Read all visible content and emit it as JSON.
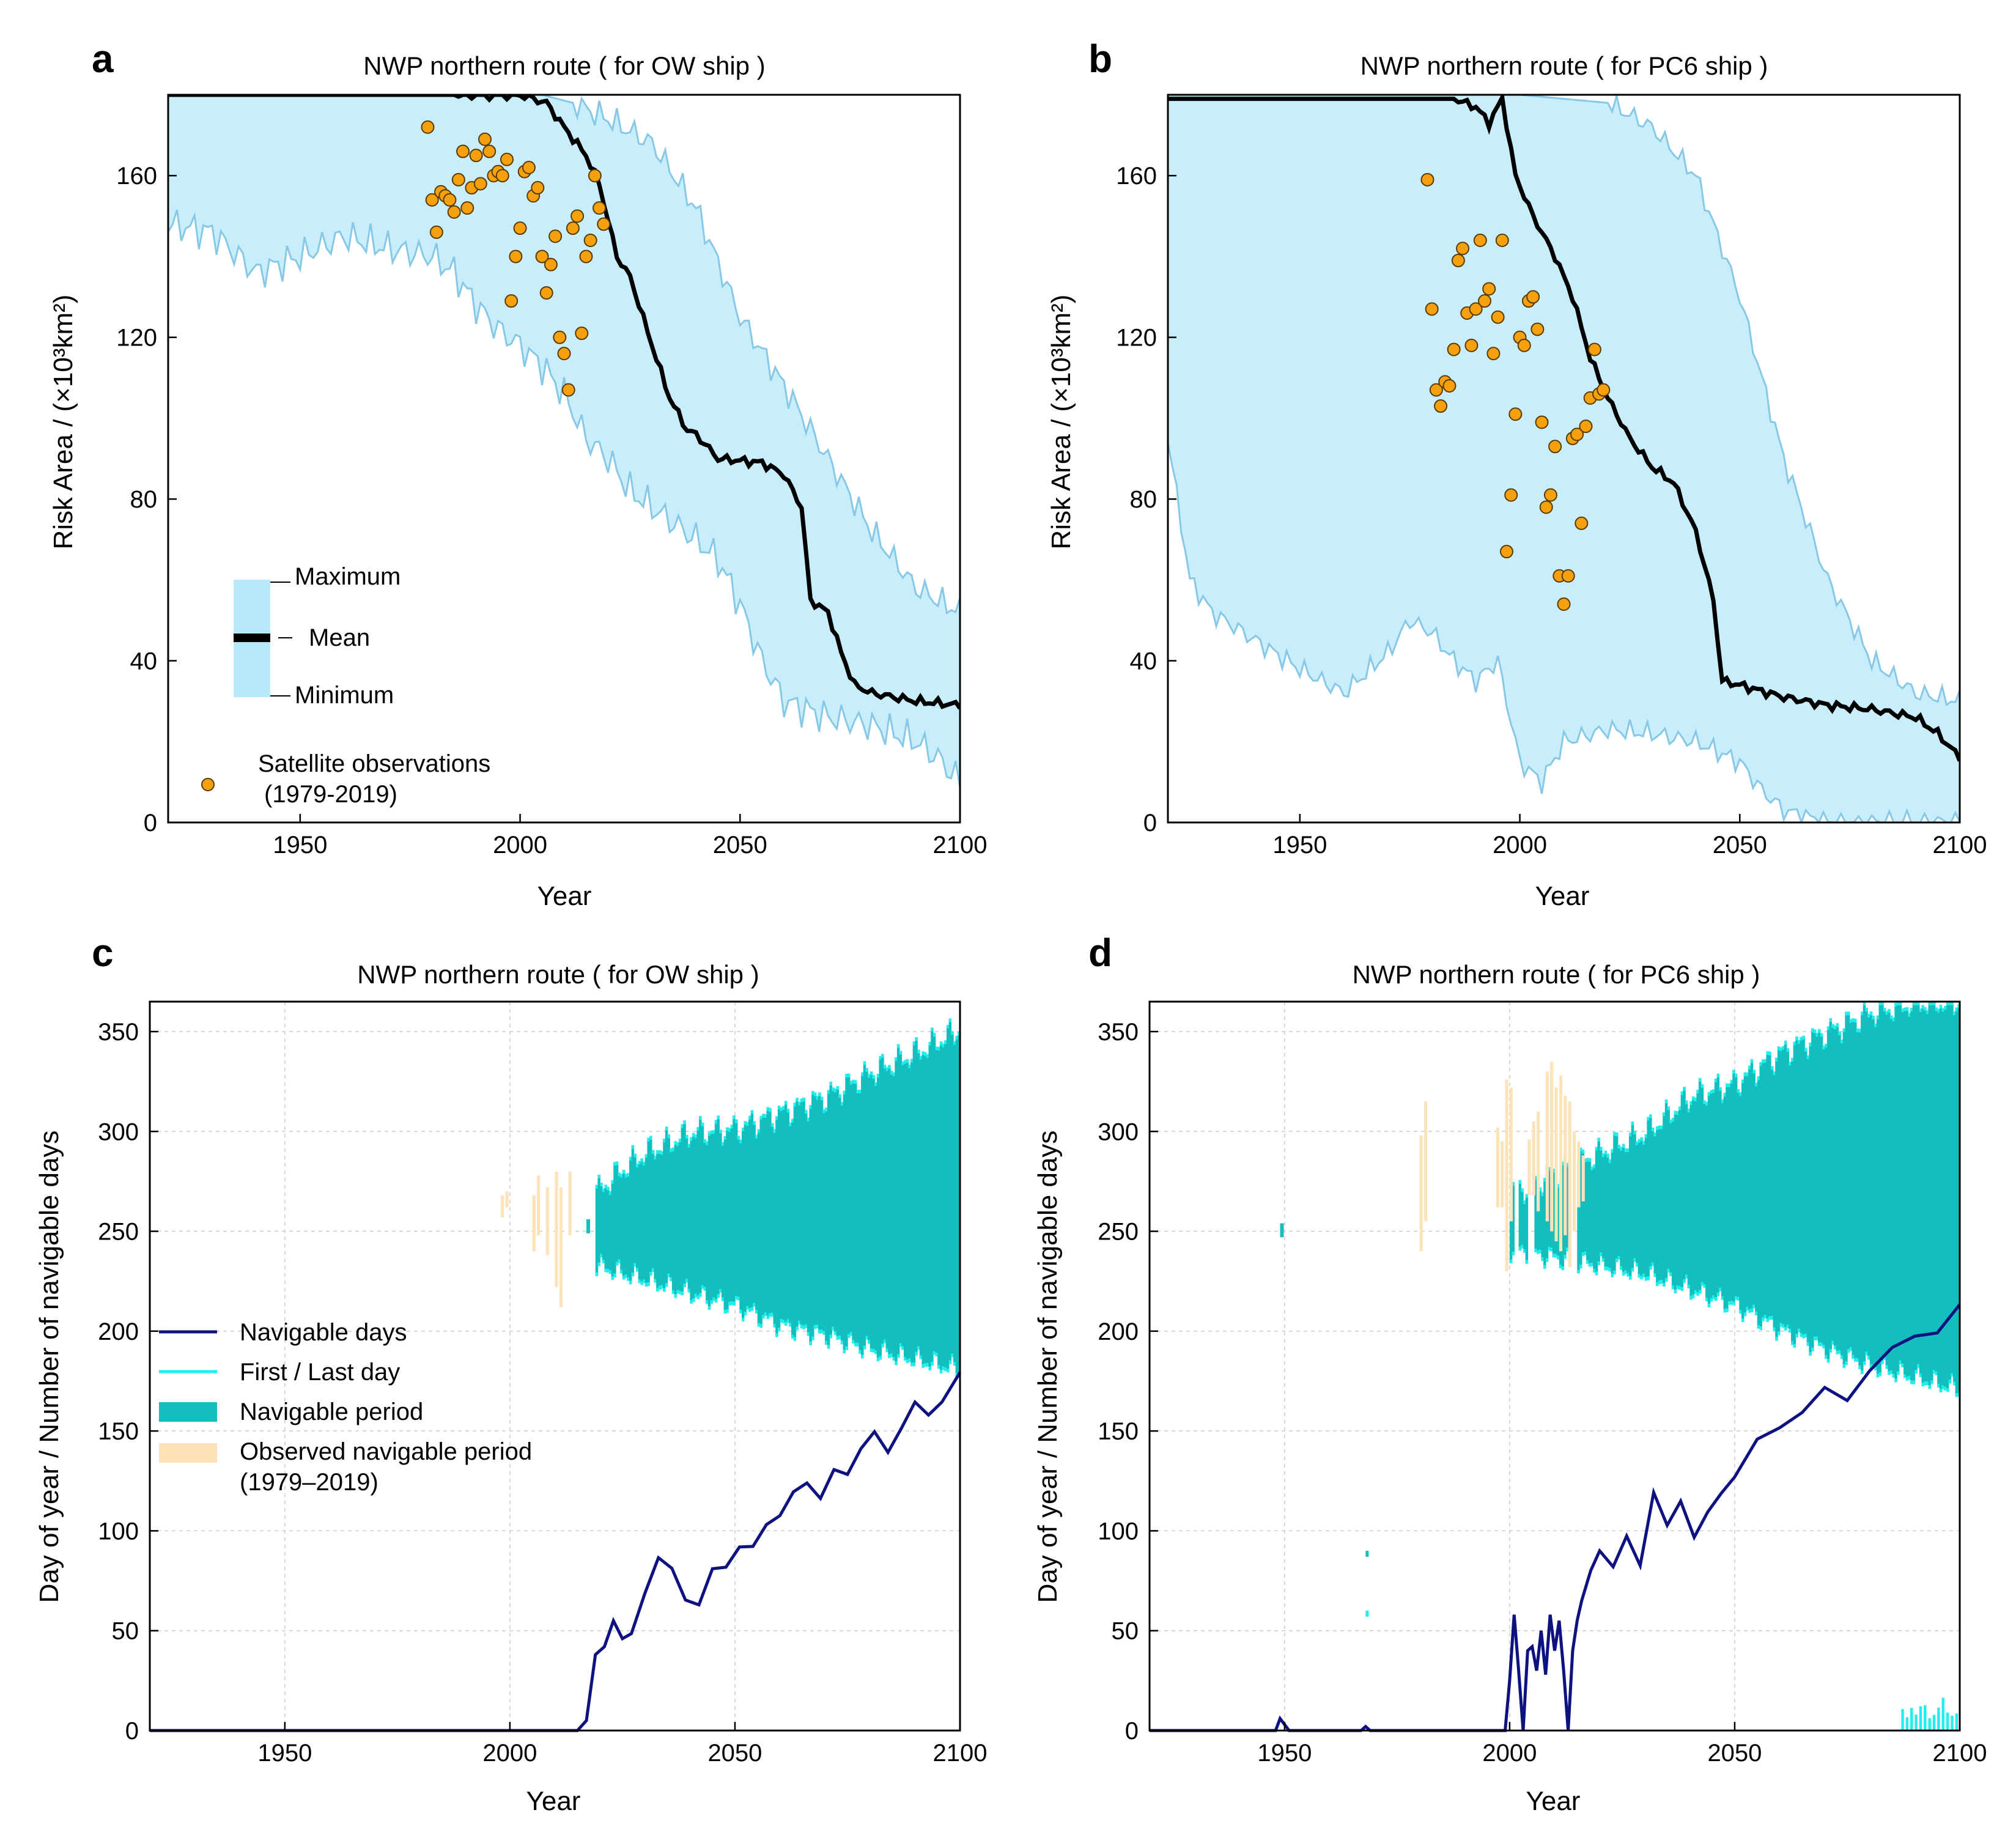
{
  "figure": {
    "x_label": "Year",
    "x_ticks": [
      "1950",
      "2000",
      "2050",
      "2100"
    ]
  },
  "panels": {
    "a": {
      "letter": "a",
      "title": "NWP northern route ( for OW ship )",
      "ylabel": "Risk Area / (×10³km²)",
      "y_ticks": [
        "0",
        "40",
        "80",
        "120",
        "160"
      ]
    },
    "b": {
      "letter": "b",
      "title": "NWP northern route ( for PC6 ship )",
      "ylabel": "Risk Area / (×10³km²)",
      "y_ticks": [
        "0",
        "40",
        "80",
        "120",
        "160"
      ]
    },
    "c": {
      "letter": "c",
      "title": "NWP northern route ( for OW ship )",
      "ylabel": "Day of year / Number of navigable days",
      "y_ticks": [
        "0",
        "50",
        "100",
        "150",
        "200",
        "250",
        "300",
        "350"
      ]
    },
    "d": {
      "letter": "d",
      "title": "NWP northern route ( for PC6 ship )",
      "ylabel": "Day of year / Number of navigable days",
      "y_ticks": [
        "0",
        "50",
        "100",
        "150",
        "200",
        "250",
        "300",
        "350"
      ]
    }
  },
  "legend_a": {
    "maximum": "Maximum",
    "mean": "Mean",
    "minimum": "Minimum",
    "sat_line1": "Satellite observations",
    "sat_line2": "(1979-2019)"
  },
  "legend_c": {
    "navigable_days": "Navigable days",
    "first_last": "First / Last day",
    "nav_period": "Navigable period",
    "obs_line1": "Observed navigable period",
    "obs_line2": "(1979–2019)"
  },
  "colors": {
    "band_fill": "#c9eefb",
    "band_edge": "#86c8e6",
    "mean_line": "#000000",
    "obs_dot": "#f5a10f",
    "nav_days": "#0d1280",
    "first_last": "#22eeee",
    "nav_period": "#13bfbc",
    "obs_period": "#fde3b8"
  },
  "chart_data": [
    {
      "id": "a",
      "type": "area",
      "title": "NWP northern route ( for OW ship )",
      "xlabel": "Year",
      "ylabel": "Risk Area / (×10³km²)",
      "xlim": [
        1920,
        2100
      ],
      "ylim": [
        0,
        180
      ],
      "series": [
        {
          "name": "Maximum",
          "x": [
            1920,
            1990,
            2005,
            2012,
            2020,
            2030,
            2040,
            2050,
            2060,
            2070,
            2080,
            2090,
            2100
          ],
          "y": [
            180,
            180,
            180,
            178,
            174,
            168,
            152,
            125,
            108,
            90,
            72,
            58,
            52
          ]
        },
        {
          "name": "Mean",
          "x": [
            1920,
            2000,
            2006,
            2010,
            2015,
            2018,
            2022,
            2025,
            2030,
            2034,
            2038,
            2040,
            2045,
            2055,
            2060,
            2064,
            2066,
            2070,
            2073,
            2076,
            2080,
            2090,
            2100
          ],
          "y": [
            180,
            180,
            178,
            172,
            165,
            158,
            140,
            135,
            118,
            105,
            97,
            96,
            90,
            89,
            86,
            78,
            55,
            52,
            42,
            34,
            32,
            30,
            29
          ]
        },
        {
          "name": "Minimum",
          "x": [
            1920,
            1930,
            1940,
            1950,
            1960,
            1970,
            1980,
            1985,
            1990,
            1995,
            2000,
            2005,
            2010,
            2015,
            2020,
            2025,
            2030,
            2040,
            2045,
            2050,
            2055,
            2060,
            2070,
            2080,
            2090,
            2095,
            2100
          ],
          "y": [
            148,
            146,
            136,
            140,
            145,
            142,
            140,
            136,
            128,
            122,
            118,
            113,
            106,
            95,
            90,
            82,
            78,
            70,
            65,
            54,
            40,
            30,
            26,
            24,
            20,
            16,
            10
          ]
        },
        {
          "name": "Satellite observations (1979-2019)",
          "type": "scatter",
          "x": [
            1979,
            1980,
            1981,
            1982,
            1983,
            1984,
            1985,
            1986,
            1987,
            1988,
            1989,
            1990,
            1991,
            1992,
            1993,
            1994,
            1995,
            1996,
            1997,
            1998,
            1999,
            2000,
            2001,
            2002,
            2003,
            2004,
            2005,
            2006,
            2007,
            2008,
            2009,
            2010,
            2011,
            2012,
            2013,
            2014,
            2015,
            2016,
            2017,
            2018,
            2019
          ],
          "y": [
            172,
            154,
            146,
            156,
            155,
            154,
            151,
            159,
            166,
            152,
            157,
            165,
            158,
            169,
            166,
            160,
            161,
            160,
            164,
            129,
            140,
            147,
            161,
            162,
            155,
            157,
            140,
            131,
            138,
            145,
            120,
            116,
            107,
            147,
            150,
            121,
            140,
            144,
            160,
            152,
            148
          ]
        }
      ]
    },
    {
      "id": "b",
      "type": "area",
      "title": "NWP northern route ( for PC6 ship )",
      "xlabel": "Year",
      "ylabel": "Risk Area / (×10³km²)",
      "xlim": [
        1920,
        2100
      ],
      "ylim": [
        0,
        180
      ],
      "series": [
        {
          "name": "Maximum",
          "x": [
            1920,
            2000,
            2020,
            2030,
            2040,
            2050,
            2060,
            2070,
            2080,
            2090,
            2100
          ],
          "y": [
            180,
            180,
            178,
            172,
            160,
            130,
            90,
            60,
            40,
            32,
            30
          ]
        },
        {
          "name": "Mean",
          "x": [
            1920,
            1985,
            1990,
            1993,
            1996,
            1999,
            2003,
            2008,
            2012,
            2016,
            2020,
            2025,
            2030,
            2035,
            2040,
            2044,
            2046,
            2050,
            2060,
            2070,
            2080,
            2090,
            2095,
            2100
          ],
          "y": [
            179,
            179,
            177,
            173,
            179,
            160,
            150,
            140,
            130,
            115,
            105,
            95,
            88,
            84,
            72,
            55,
            35,
            34,
            31,
            29,
            28,
            26,
            22,
            16
          ]
        },
        {
          "name": "Minimum",
          "x": [
            1920,
            1925,
            1930,
            1940,
            1950,
            1960,
            1970,
            1975,
            1980,
            1985,
            1990,
            1995,
            2000,
            2005,
            2010,
            2020,
            2030,
            2040,
            2050,
            2055,
            2060,
            2070,
            2080,
            2090,
            2100
          ],
          "y": [
            95,
            60,
            52,
            45,
            38,
            32,
            42,
            50,
            47,
            40,
            35,
            40,
            15,
            10,
            20,
            23,
            22,
            20,
            15,
            8,
            3,
            0,
            0,
            0,
            0
          ]
        },
        {
          "name": "Satellite observations (1979-2019)",
          "type": "scatter",
          "x": [
            1979,
            1980,
            1981,
            1982,
            1983,
            1984,
            1985,
            1986,
            1987,
            1988,
            1989,
            1990,
            1991,
            1992,
            1993,
            1994,
            1995,
            1996,
            1997,
            1998,
            1999,
            2000,
            2001,
            2002,
            2003,
            2004,
            2005,
            2006,
            2007,
            2008,
            2009,
            2010,
            2011,
            2012,
            2013,
            2014,
            2015,
            2016,
            2017,
            2018,
            2019
          ],
          "y": [
            159,
            127,
            107,
            103,
            109,
            108,
            117,
            139,
            142,
            126,
            118,
            127,
            144,
            129,
            132,
            116,
            125,
            144,
            67,
            81,
            101,
            120,
            118,
            129,
            130,
            122,
            99,
            78,
            81,
            93,
            61,
            54,
            61,
            95,
            96,
            74,
            98,
            105,
            117,
            106,
            107
          ]
        }
      ]
    },
    {
      "id": "c",
      "type": "line",
      "title": "NWP northern route ( for OW ship )",
      "xlabel": "Year",
      "ylabel": "Day of year / Number of navigable days",
      "xlim": [
        1920,
        2100
      ],
      "ylim": [
        0,
        365
      ],
      "series": [
        {
          "name": "Navigable days",
          "x": [
            1920,
            2015,
            2017,
            2019,
            2021,
            2023,
            2025,
            2027,
            2030,
            2033,
            2036,
            2039,
            2042,
            2045,
            2048,
            2051,
            2054,
            2057,
            2060,
            2063,
            2066,
            2069,
            2072,
            2075,
            2078,
            2081,
            2084,
            2087,
            2090,
            2093,
            2096,
            2100
          ],
          "y": [
            0,
            0,
            5,
            38,
            42,
            55,
            46,
            48,
            65,
            88,
            82,
            68,
            62,
            78,
            82,
            92,
            96,
            102,
            106,
            118,
            124,
            120,
            130,
            128,
            138,
            150,
            142,
            152,
            165,
            154,
            165,
            178
          ]
        },
        {
          "name": "First day",
          "x": [
            2019,
            2025,
            2030,
            2040,
            2050,
            2060,
            2070,
            2080,
            2090,
            2100
          ],
          "y": [
            232,
            228,
            225,
            218,
            212,
            202,
            197,
            190,
            185,
            180
          ]
        },
        {
          "name": "Last day",
          "x": [
            2019,
            2025,
            2030,
            2040,
            2050,
            2060,
            2070,
            2080,
            2090,
            2100
          ],
          "y": [
            270,
            282,
            290,
            300,
            302,
            310,
            318,
            330,
            340,
            352
          ]
        },
        {
          "name": "Observed navigable period (1979–2019)",
          "periods": [
            [
              1998,
              257,
              268
            ],
            [
              1999,
              262,
              270
            ],
            [
              2005,
              240,
              268
            ],
            [
              2006,
              248,
              278
            ],
            [
              2008,
              238,
              272
            ],
            [
              2010,
              222,
              280
            ],
            [
              2011,
              212,
              272
            ],
            [
              2013,
              248,
              280
            ],
            [
              2017,
              250,
              256
            ]
          ]
        }
      ]
    },
    {
      "id": "d",
      "type": "line",
      "title": "NWP northern route ( for PC6 ship )",
      "xlabel": "Year",
      "ylabel": "Day of year / Number of navigable days",
      "xlim": [
        1920,
        2100
      ],
      "ylim": [
        0,
        365
      ],
      "series": [
        {
          "name": "Navigable days",
          "x": [
            1920,
            1948,
            1949,
            1950,
            1951,
            1967,
            1968,
            1969,
            1999,
            2000,
            2001,
            2002,
            2003,
            2004,
            2005,
            2006,
            2007,
            2008,
            2009,
            2010,
            2011,
            2012,
            2013,
            2014,
            2015,
            2016,
            2018,
            2020,
            2023,
            2026,
            2029,
            2032,
            2035,
            2038,
            2041,
            2044,
            2047,
            2050,
            2055,
            2060,
            2065,
            2070,
            2075,
            2080,
            2085,
            2090,
            2095,
            2100
          ],
          "y": [
            0,
            0,
            6,
            3,
            0,
            0,
            2,
            0,
            0,
            25,
            58,
            30,
            0,
            40,
            42,
            30,
            50,
            28,
            58,
            40,
            55,
            30,
            0,
            40,
            55,
            65,
            80,
            90,
            82,
            95,
            85,
            120,
            105,
            112,
            95,
            110,
            120,
            130,
            145,
            150,
            162,
            170,
            165,
            182,
            190,
            198,
            200,
            212
          ]
        },
        {
          "name": "First day",
          "x": [
            2000,
            2020,
            2030,
            2040,
            2050,
            2060,
            2070,
            2080,
            2090,
            2100
          ],
          "y": [
            240,
            232,
            228,
            220,
            212,
            200,
            190,
            182,
            176,
            170
          ]
        },
        {
          "name": "Last day",
          "x": [
            2000,
            2020,
            2030,
            2040,
            2050,
            2060,
            2070,
            2080,
            2090,
            2100
          ],
          "y": [
            270,
            290,
            300,
            318,
            325,
            340,
            350,
            360,
            365,
            365
          ]
        },
        {
          "name": "Observed navigable period (1979–2019)",
          "periods": [
            [
              1980,
              240,
              298
            ],
            [
              1981,
              255,
              315
            ],
            [
              1997,
              262,
              302
            ],
            [
              1998,
              262,
              295
            ],
            [
              1999,
              230,
              326
            ],
            [
              2000,
              255,
              322
            ],
            [
              2004,
              268,
              296
            ],
            [
              2005,
              268,
              305
            ],
            [
              2006,
              260,
              310
            ],
            [
              2008,
              255,
              330
            ],
            [
              2009,
              250,
              335
            ],
            [
              2010,
              245,
              322
            ],
            [
              2011,
              240,
              328
            ],
            [
              2012,
              248,
              318
            ],
            [
              2013,
              232,
              315
            ],
            [
              2014,
              250,
              300
            ],
            [
              2015,
              262,
              295
            ],
            [
              2016,
              265,
              288
            ]
          ]
        }
      ]
    }
  ]
}
